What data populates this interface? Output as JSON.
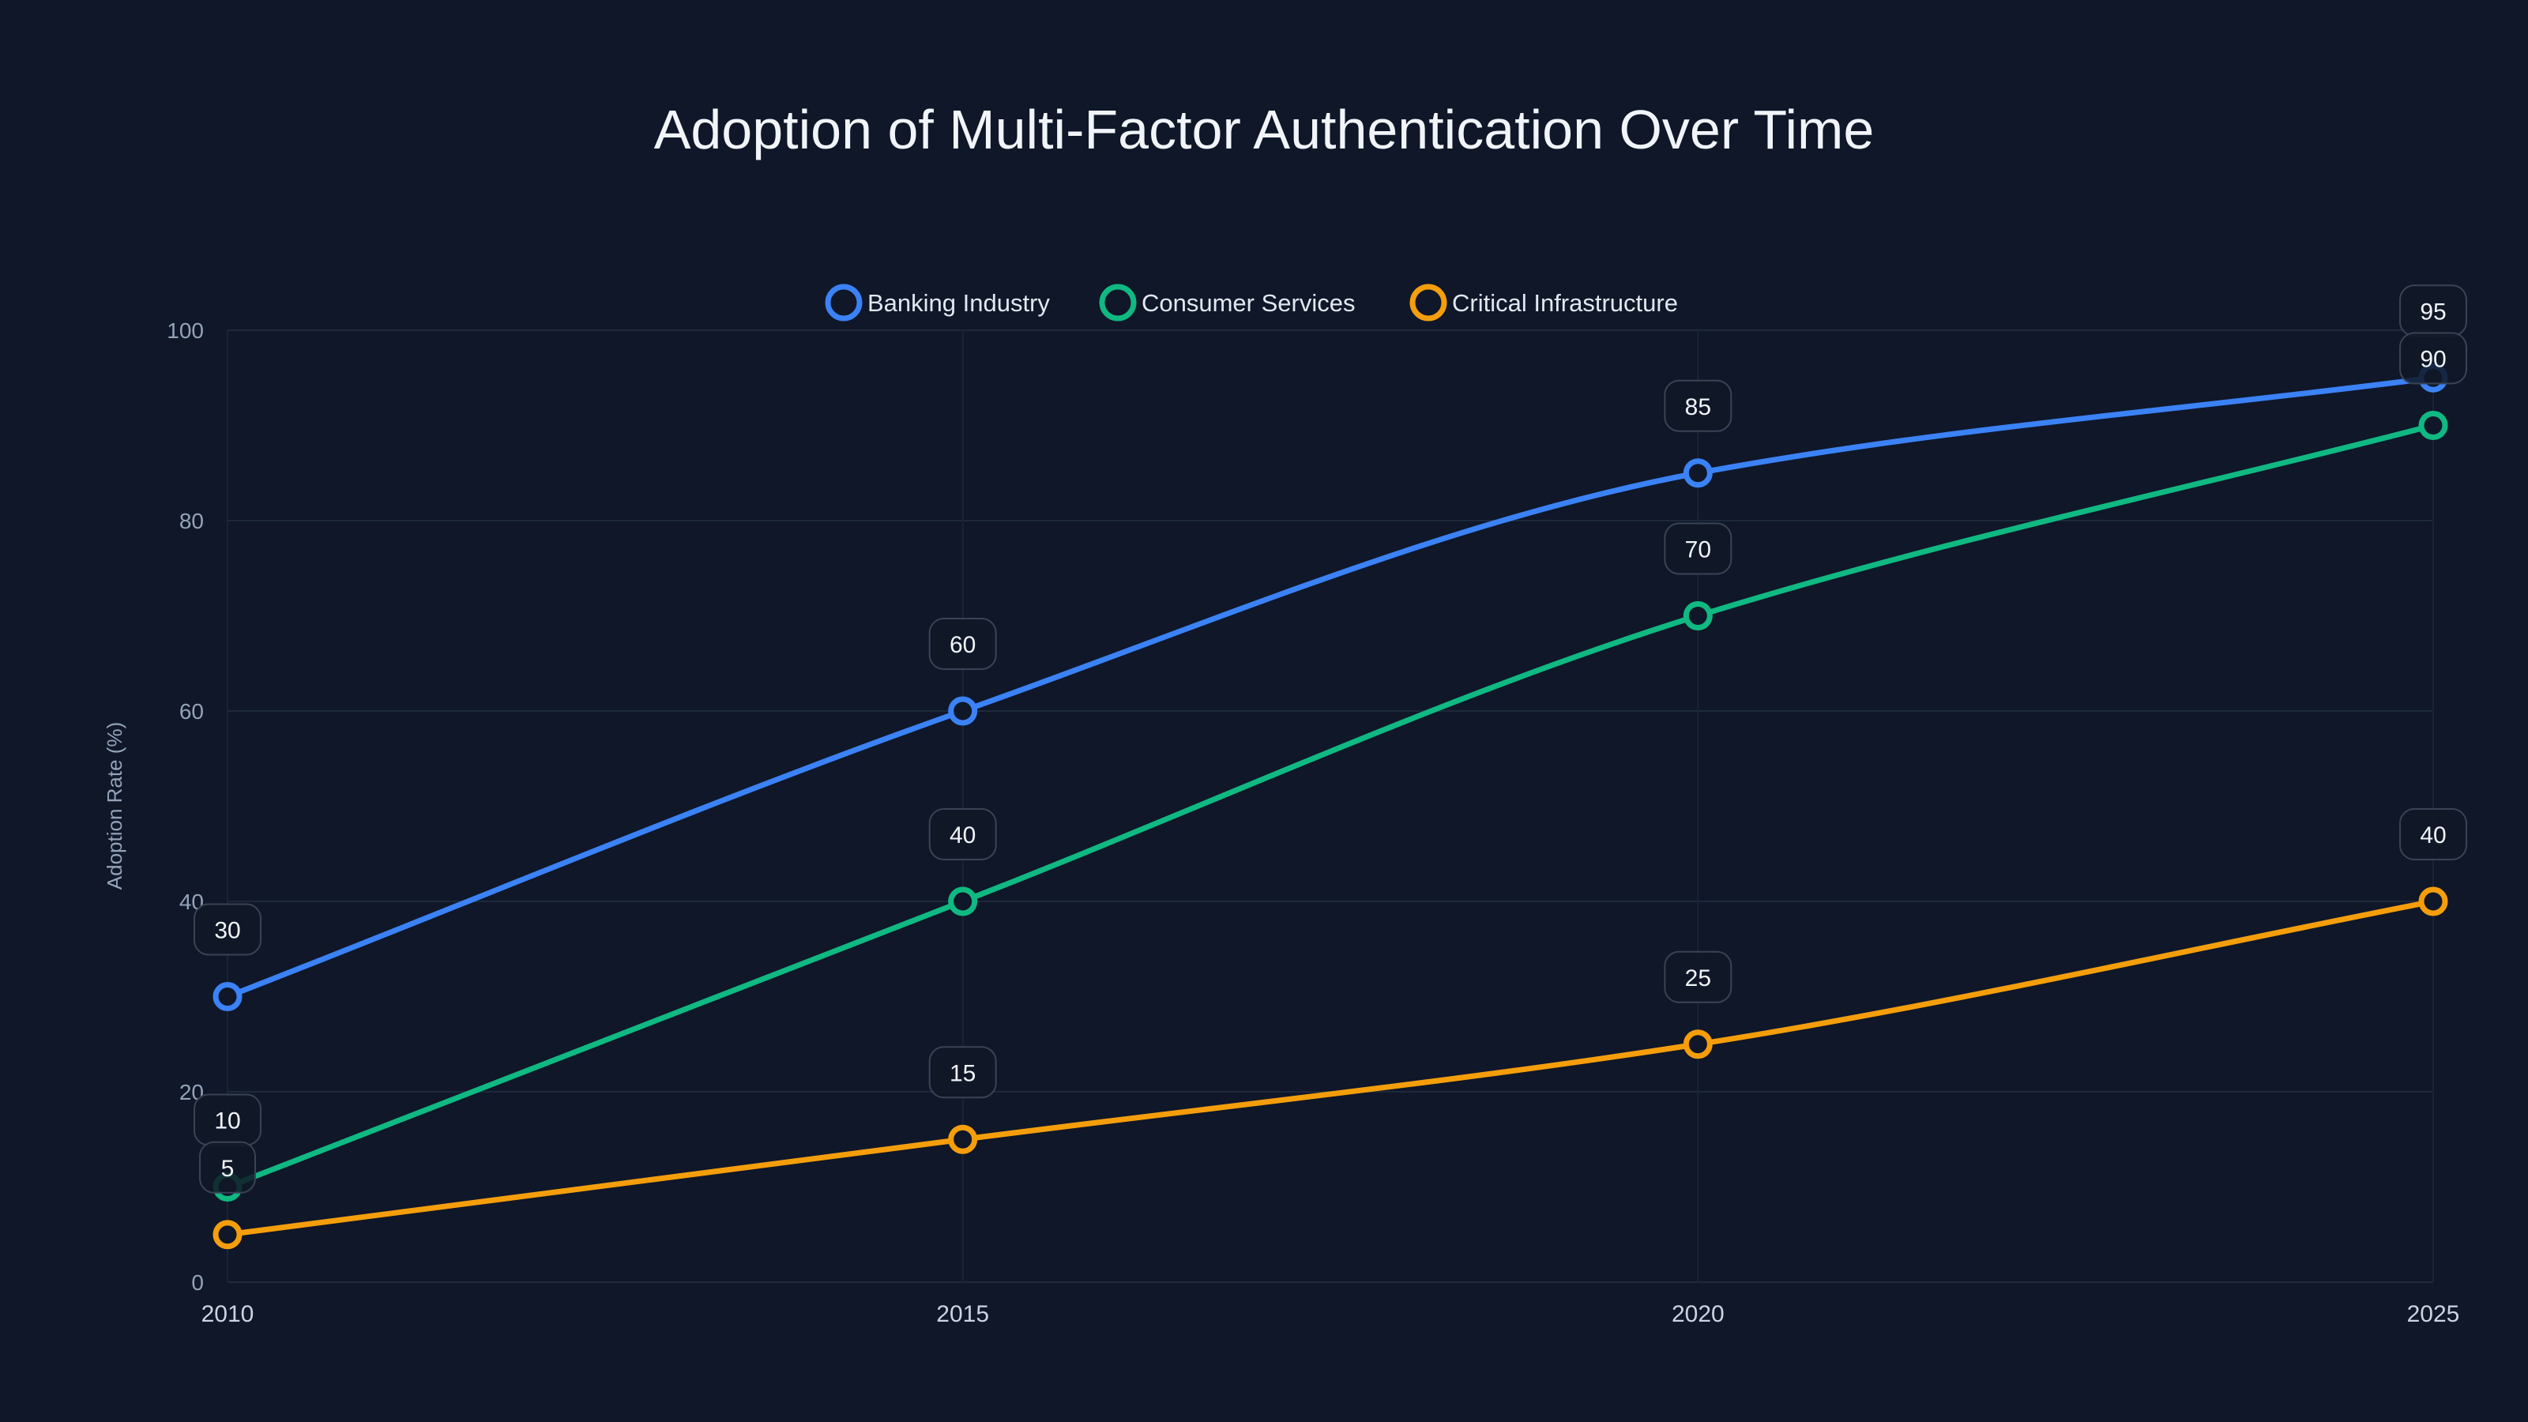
{
  "chart_data": {
    "type": "line",
    "title": "Adoption of Multi-Factor Authentication Over Time",
    "xlabel": "",
    "ylabel": "Adoption Rate (%)",
    "x": [
      2010,
      2015,
      2020,
      2025
    ],
    "x_tick_labels": [
      "2010",
      "2015",
      "2020",
      "2025"
    ],
    "ylim": [
      0,
      100
    ],
    "y_ticks": [
      0,
      20,
      40,
      60,
      80,
      100
    ],
    "grid": true,
    "legend_position": "top-center",
    "series": [
      {
        "name": "Banking Industry",
        "color": "#3b82f6",
        "values": [
          30,
          60,
          85,
          95
        ]
      },
      {
        "name": "Consumer Services",
        "color": "#10b981",
        "values": [
          10,
          40,
          70,
          90
        ]
      },
      {
        "name": "Critical Infrastructure",
        "color": "#f59e0b",
        "values": [
          5,
          15,
          25,
          40
        ]
      }
    ]
  }
}
